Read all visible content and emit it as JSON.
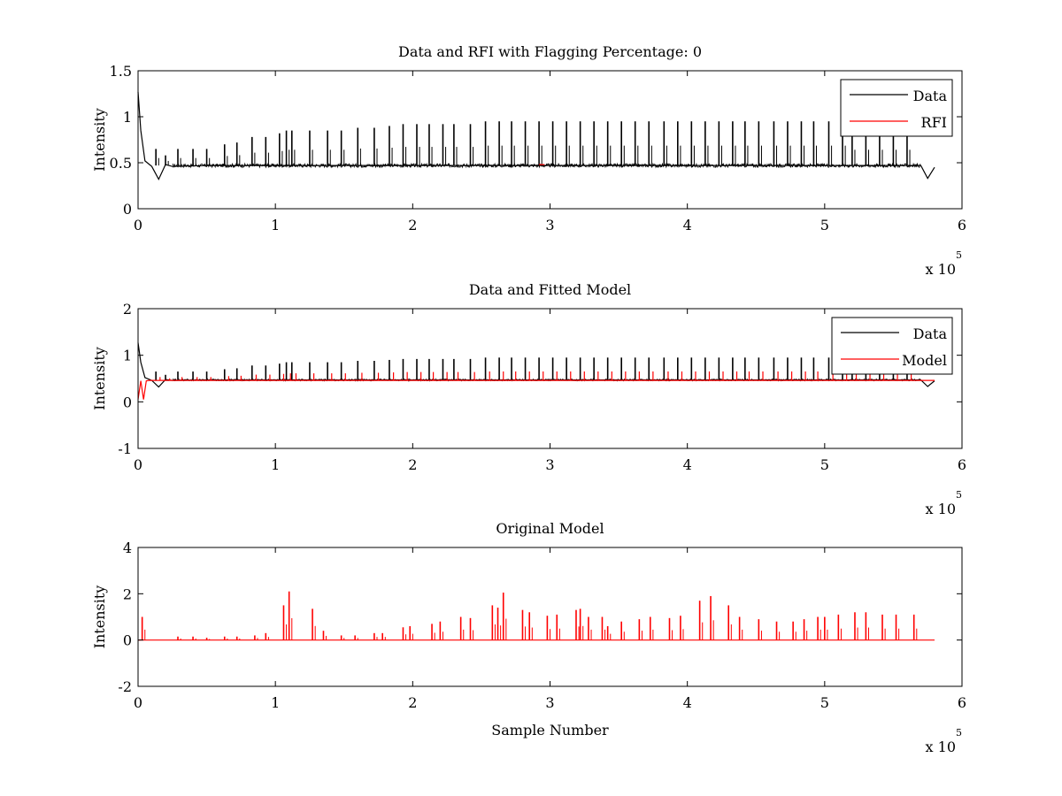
{
  "chart_data": [
    {
      "type": "line",
      "title": "Data and RFI with Flagging Percentage: 0",
      "xlabel": "",
      "ylabel": "Intensity",
      "xlim": [
        0,
        6
      ],
      "ylim": [
        0,
        1.5
      ],
      "x_multiplier": "x 10",
      "x_multiplier_exp": "5",
      "xticks": [
        "0",
        "1",
        "2",
        "3",
        "4",
        "5",
        "6"
      ],
      "yticks": [
        "0",
        "0.5",
        "1",
        "1.5"
      ],
      "grid": false,
      "legend_position": "top-right",
      "series": [
        {
          "name": "Data",
          "color": "#000000",
          "x": [
            0,
            0.02,
            0.05,
            0.1,
            0.15,
            0.2,
            0.25,
            0.5,
            1.0,
            1.5,
            2.0,
            2.5,
            3.0,
            3.5,
            4.0,
            4.5,
            5.0,
            5.5,
            5.7,
            5.75,
            5.8
          ],
          "y": [
            1.27,
            0.85,
            0.52,
            0.46,
            0.32,
            0.48,
            0.46,
            0.47,
            0.47,
            0.47,
            0.47,
            0.47,
            0.47,
            0.47,
            0.47,
            0.47,
            0.47,
            0.47,
            0.47,
            0.33,
            0.45
          ],
          "spike_x": [
            0.13,
            0.2,
            0.29,
            0.4,
            0.5,
            0.63,
            0.72,
            0.83,
            0.93,
            1.03,
            1.08,
            1.12,
            1.25,
            1.38,
            1.48,
            1.6,
            1.72,
            1.83,
            1.93,
            2.03,
            2.12,
            2.22,
            2.3,
            2.42,
            2.53,
            2.63,
            2.72,
            2.82,
            2.92,
            3.02,
            3.12,
            3.22,
            3.32,
            3.42,
            3.52,
            3.62,
            3.72,
            3.83,
            3.93,
            4.03,
            4.13,
            4.23,
            4.33,
            4.42,
            4.52,
            4.63,
            4.73,
            4.83,
            4.92,
            5.03,
            5.13,
            5.2,
            5.3,
            5.4,
            5.5,
            5.6
          ],
          "spike_y": [
            0.65,
            0.58,
            0.65,
            0.65,
            0.65,
            0.7,
            0.72,
            0.78,
            0.78,
            0.82,
            0.85,
            0.85,
            0.85,
            0.85,
            0.85,
            0.88,
            0.88,
            0.9,
            0.92,
            0.92,
            0.92,
            0.92,
            0.92,
            0.92,
            0.95,
            0.95,
            0.95,
            0.95,
            0.95,
            0.95,
            0.95,
            0.95,
            0.95,
            0.95,
            0.95,
            0.95,
            0.95,
            0.95,
            0.95,
            0.95,
            0.95,
            0.95,
            0.95,
            0.95,
            0.95,
            0.95,
            0.95,
            0.95,
            0.95,
            0.95,
            0.95,
            0.85,
            0.85,
            0.85,
            0.85,
            0.85
          ]
        },
        {
          "name": "RFI",
          "color": "#ff0000",
          "x": [
            2.92,
            2.96
          ],
          "y": [
            0.48,
            0.48
          ]
        }
      ]
    },
    {
      "type": "line",
      "title": "Data and Fitted Model",
      "xlabel": "",
      "ylabel": "Intensity",
      "xlim": [
        0,
        6
      ],
      "ylim": [
        -1,
        2
      ],
      "x_multiplier": "x 10",
      "x_multiplier_exp": "5",
      "xticks": [
        "0",
        "1",
        "2",
        "3",
        "4",
        "5",
        "6"
      ],
      "yticks": [
        "-1",
        "0",
        "1",
        "2"
      ],
      "grid": false,
      "legend_position": "top-right",
      "series": [
        {
          "name": "Data",
          "color": "#000000",
          "x": [
            0,
            0.02,
            0.05,
            0.1,
            0.15,
            0.2,
            0.25,
            0.5,
            1.0,
            1.5,
            2.0,
            2.5,
            3.0,
            3.5,
            4.0,
            4.5,
            5.0,
            5.5,
            5.7,
            5.75,
            5.8
          ],
          "y": [
            1.27,
            0.85,
            0.52,
            0.46,
            0.32,
            0.48,
            0.46,
            0.47,
            0.47,
            0.47,
            0.47,
            0.47,
            0.47,
            0.47,
            0.47,
            0.47,
            0.47,
            0.47,
            0.47,
            0.33,
            0.45
          ]
        },
        {
          "name": "Model",
          "color": "#ff0000",
          "x": [
            0,
            0.02,
            0.04,
            0.06,
            0.08,
            1.0,
            2.0,
            3.0,
            4.0,
            5.0,
            5.8
          ],
          "y": [
            0.05,
            0.45,
            0.05,
            0.45,
            0.46,
            0.46,
            0.46,
            0.46,
            0.46,
            0.46,
            0.46
          ]
        }
      ]
    },
    {
      "type": "line",
      "title": "Original Model",
      "xlabel": "Sample Number",
      "ylabel": "Intensity",
      "xlim": [
        0,
        6
      ],
      "ylim": [
        -2,
        4
      ],
      "x_multiplier": "x 10",
      "x_multiplier_exp": "5",
      "xticks": [
        "0",
        "1",
        "2",
        "3",
        "4",
        "5",
        "6"
      ],
      "yticks": [
        "-2",
        "0",
        "2",
        "4"
      ],
      "grid": false,
      "series": [
        {
          "color": "#ff0000",
          "x": [
            0,
            5.8
          ],
          "y": [
            0,
            0
          ],
          "spike_x": [
            0.03,
            0.29,
            0.4,
            0.5,
            0.63,
            0.72,
            0.85,
            0.93,
            1.06,
            1.1,
            1.27,
            1.35,
            1.48,
            1.58,
            1.72,
            1.78,
            1.93,
            1.98,
            2.14,
            2.2,
            2.35,
            2.42,
            2.58,
            2.62,
            2.66,
            2.8,
            2.85,
            2.98,
            3.05,
            3.19,
            3.22,
            3.28,
            3.38,
            3.42,
            3.52,
            3.65,
            3.73,
            3.87,
            3.95,
            4.09,
            4.17,
            4.3,
            4.38,
            4.52,
            4.65,
            4.77,
            4.85,
            4.95,
            5.0,
            5.1,
            5.22,
            5.3,
            5.42,
            5.52,
            5.65
          ],
          "spike_y": [
            1.0,
            0.15,
            0.15,
            0.1,
            0.15,
            0.15,
            0.2,
            0.3,
            1.5,
            2.1,
            1.35,
            0.4,
            0.2,
            0.2,
            0.3,
            0.3,
            0.55,
            0.6,
            0.7,
            0.8,
            1.0,
            0.95,
            1.5,
            1.4,
            2.05,
            1.3,
            1.2,
            1.05,
            1.1,
            1.3,
            1.35,
            1.0,
            1.0,
            0.6,
            0.8,
            0.9,
            1.0,
            0.95,
            1.05,
            1.7,
            1.9,
            1.5,
            1.0,
            0.9,
            0.8,
            0.8,
            0.9,
            1.0,
            1.0,
            1.1,
            1.2,
            1.2,
            1.1,
            1.1,
            1.1
          ]
        }
      ]
    }
  ]
}
